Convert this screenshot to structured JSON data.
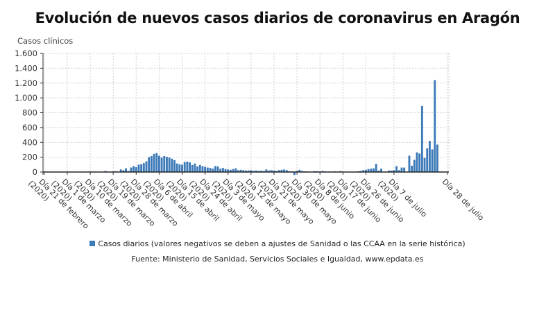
{
  "chart_data": {
    "type": "bar",
    "title": "Evolución de nuevos casos diarios de coronavirus en Aragón",
    "ylabel": "Casos clínicos",
    "xlabel": "",
    "ylim": [
      -100,
      1600
    ],
    "yticks": [
      0,
      200,
      400,
      600,
      800,
      1000,
      1200,
      1400,
      1600
    ],
    "ytick_labels": [
      "0",
      "200",
      "400",
      "600",
      "800",
      "1.000",
      "1.200",
      "1.400",
      "1.600"
    ],
    "grid": true,
    "bar_color": "#3d7ab8",
    "start_date": "21 febrero 2020",
    "x_tick_labels": [
      {
        "day_index": 0,
        "lines": [
          "Día 21 de febrero",
          "(2020)"
        ]
      },
      {
        "day_index": 9,
        "lines": [
          "Día 1 de marzo",
          "(2020)"
        ]
      },
      {
        "day_index": 18,
        "lines": [
          "Día 10 de marzo",
          "(2020)"
        ]
      },
      {
        "day_index": 27,
        "lines": [
          "Día 19 de marzo",
          "(2020)"
        ]
      },
      {
        "day_index": 36,
        "lines": [
          "Día 28 de marzo",
          "(2020)"
        ]
      },
      {
        "day_index": 45,
        "lines": [
          "Día 6 de abril",
          "(2020)"
        ]
      },
      {
        "day_index": 54,
        "lines": [
          "Día 15 de abril",
          "(2020)"
        ]
      },
      {
        "day_index": 63,
        "lines": [
          "Día 24 de abril",
          "(2020)"
        ]
      },
      {
        "day_index": 72,
        "lines": [
          "Día 3 de mayo",
          "(2020)"
        ]
      },
      {
        "day_index": 81,
        "lines": [
          "Día 12 de mayo",
          "(2020)"
        ]
      },
      {
        "day_index": 90,
        "lines": [
          "Día 21 de mayo",
          "(2020)"
        ]
      },
      {
        "day_index": 99,
        "lines": [
          "Día 30 de mayo",
          "(2020)"
        ]
      },
      {
        "day_index": 108,
        "lines": [
          "Día 8 de junio",
          "(2020)"
        ]
      },
      {
        "day_index": 117,
        "lines": [
          "Día 17 de junio",
          "(2020)"
        ]
      },
      {
        "day_index": 126,
        "lines": [
          "Día 26 de junio",
          "(2020)"
        ]
      },
      {
        "day_index": 137,
        "lines": [
          "Día 7 de julio",
          "(2020)"
        ]
      },
      {
        "day_index": 158,
        "lines": [
          "Día 28 de julio"
        ]
      }
    ],
    "series": [
      {
        "name": "Casos diarios (valores negativos se deben a ajustes de Sanidad o las CCAA en la serie histórica)",
        "values": [
          0,
          0,
          0,
          0,
          0,
          0,
          0,
          0,
          0,
          0,
          0,
          0,
          0,
          0,
          0,
          0,
          0,
          0,
          0,
          0,
          0,
          0,
          0,
          0,
          15,
          0,
          0,
          8,
          10,
          5,
          35,
          25,
          50,
          15,
          60,
          80,
          65,
          100,
          105,
          120,
          145,
          200,
          215,
          245,
          255,
          220,
          195,
          215,
          205,
          195,
          180,
          160,
          115,
          105,
          100,
          135,
          140,
          130,
          95,
          115,
          75,
          95,
          80,
          70,
          60,
          55,
          45,
          80,
          75,
          45,
          55,
          40,
          35,
          30,
          40,
          50,
          25,
          30,
          25,
          20,
          20,
          25,
          15,
          20,
          15,
          18,
          15,
          35,
          20,
          25,
          20,
          15,
          25,
          30,
          35,
          25,
          10,
          8,
          -40,
          15,
          30,
          15,
          10,
          8,
          5,
          5,
          12,
          10,
          5,
          15,
          8,
          5,
          5,
          3,
          10,
          5,
          12,
          5,
          0,
          0,
          0,
          0,
          0,
          10,
          15,
          25,
          30,
          40,
          45,
          50,
          110,
          20,
          45,
          5,
          5,
          20,
          20,
          25,
          80,
          25,
          60,
          60,
          0,
          220,
          85,
          165,
          265,
          250,
          890,
          190,
          320,
          420,
          305,
          1240,
          370,
          0,
          0,
          0,
          0
        ]
      }
    ]
  },
  "legend": {
    "label": "Casos diarios (valores negativos se deben a ajustes de Sanidad o las CCAA en la serie histórica)"
  },
  "source": "Fuente: Ministerio de Sanidad, Servicios Sociales e Igualdad, www.epdata.es"
}
